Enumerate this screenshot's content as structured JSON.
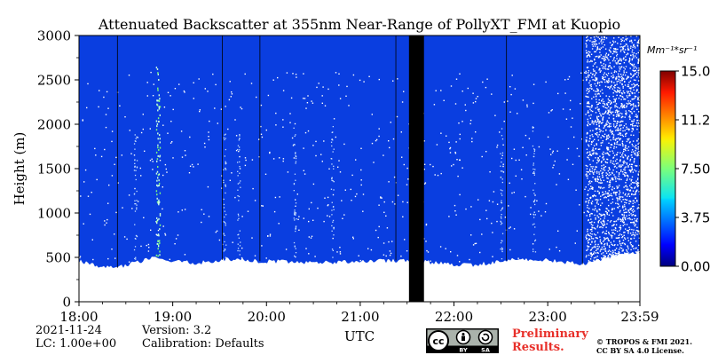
{
  "chart_data": {
    "type": "heatmap",
    "title": "Attenuated Backscatter at 355nm Near-Range of PollyXT_FMI at Kuopio",
    "xlabel": "UTC",
    "ylabel": "Height (m)",
    "x_ticks": [
      "18:00",
      "19:00",
      "20:00",
      "21:00",
      "22:00",
      "23:00",
      "23:59"
    ],
    "x_tick_hours": [
      18,
      19,
      20,
      21,
      22,
      23,
      23.983
    ],
    "xlim_hours": [
      18,
      23.983
    ],
    "ylim": [
      0,
      3000
    ],
    "y_ticks": [
      0,
      500,
      1000,
      1500,
      2000,
      2500,
      3000
    ],
    "colorbar": {
      "unit": "Mm⁻¹*sr⁻¹",
      "range": [
        0,
        15
      ],
      "ticks": [
        "0.00",
        "3.75",
        "7.50",
        "11.25",
        "15.00"
      ],
      "tick_values": [
        0,
        3.75,
        7.5,
        11.25,
        15
      ]
    },
    "fill_value": 0.2,
    "field_color": "#0a3ee0",
    "no_data_color": "#000000",
    "no_data_interval_hours": [
      21.52,
      21.68
    ],
    "profile_separator_hours": [
      18.41,
      19.53,
      19.93,
      21.38,
      22.56,
      23.37
    ],
    "lower_boundary_m": [
      [
        18.0,
        460
      ],
      [
        18.2,
        400
      ],
      [
        18.4,
        380
      ],
      [
        18.6,
        440
      ],
      [
        18.8,
        490
      ],
      [
        19.0,
        450
      ],
      [
        19.3,
        440
      ],
      [
        19.6,
        480
      ],
      [
        19.9,
        460
      ],
      [
        20.3,
        450
      ],
      [
        20.7,
        440
      ],
      [
        21.0,
        450
      ],
      [
        21.5,
        470
      ],
      [
        21.8,
        440
      ],
      [
        22.2,
        410
      ],
      [
        22.6,
        470
      ],
      [
        23.0,
        470
      ],
      [
        23.4,
        420
      ],
      [
        23.7,
        520
      ],
      [
        23.983,
        560
      ]
    ],
    "noise_onset_hours": 23.4,
    "plume_hours": [
      18.82,
      18.86
    ],
    "plume_top_m": 2700
  },
  "info": {
    "date": "2021-11-24",
    "lc": "LC: 1.00e+00",
    "version": "Version: 3.2",
    "calibration": "Calibration: Defaults"
  },
  "badge": {
    "cc_label": "cc",
    "by_label": "BY",
    "sa_label": "SA"
  },
  "preliminary": [
    "Preliminary",
    "Results."
  ],
  "copyright": [
    "© TROPOS & FMI 2021.",
    "CC BY SA 4.0 License."
  ],
  "colors": {
    "field": "#0a3ee0",
    "noise": "#ffffff",
    "prelim": "#e8302a"
  }
}
